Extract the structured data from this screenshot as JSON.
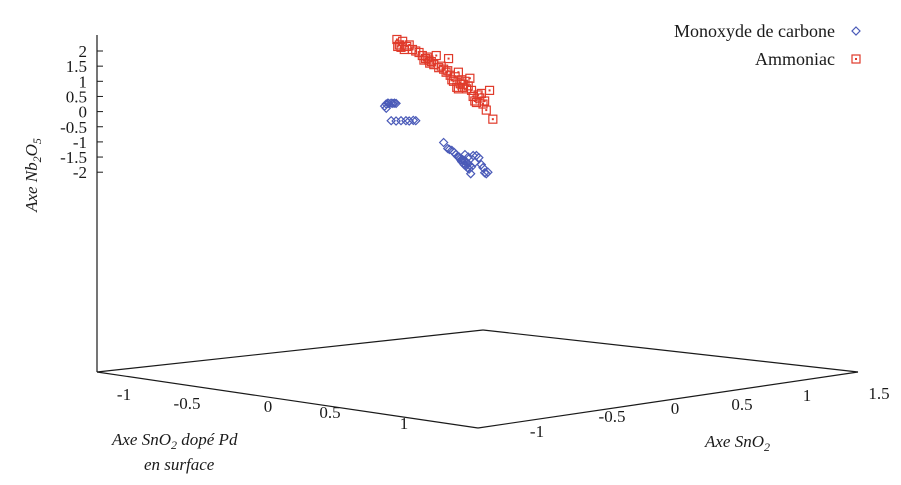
{
  "chart_data": {
    "type": "scatter",
    "projection": "3d",
    "z_axis": {
      "label_prefix": "Axe Nb",
      "label_sub1": "2",
      "label_mid": "O",
      "label_sub2": "5",
      "ticks": [
        "2",
        "1.5",
        "1",
        "0.5",
        "0",
        "-0.5",
        "-1",
        "-1.5",
        "-2"
      ],
      "range": [
        -2.3,
        2.4
      ]
    },
    "x_axis": {
      "label_prefix": "Axe SnO",
      "label_sub": "2",
      "ticks": [
        "-1",
        "-0.5",
        "0",
        "0.5",
        "1",
        "1.5"
      ]
    },
    "y_axis": {
      "label_line1_prefix": "Axe SnO",
      "label_line1_sub": "2",
      "label_line1_suffix": " dopé Pd",
      "label_line2": "en surface",
      "ticks": [
        "-1",
        "-0.5",
        "0",
        "0.5",
        "1"
      ]
    },
    "legend_position": "top-right",
    "series": [
      {
        "name": "Monoxyde de carbone",
        "marker": "diamond",
        "color": "#4a5ab8",
        "points": [
          {
            "x": -1.18,
            "y": 0.25
          },
          {
            "x": -1.16,
            "y": 0.28
          },
          {
            "x": -1.15,
            "y": 0.27
          },
          {
            "x": -1.12,
            "y": 0.28
          },
          {
            "x": -1.1,
            "y": 0.27
          },
          {
            "x": -1.08,
            "y": 0.28
          },
          {
            "x": -1.06,
            "y": 0.27
          },
          {
            "x": -1.2,
            "y": 0.18
          },
          {
            "x": -1.18,
            "y": 0.11
          },
          {
            "x": -1.12,
            "y": -0.3
          },
          {
            "x": -1.06,
            "y": -0.31
          },
          {
            "x": -1.0,
            "y": -0.3
          },
          {
            "x": -0.94,
            "y": -0.3
          },
          {
            "x": -0.9,
            "y": -0.31
          },
          {
            "x": -0.85,
            "y": -0.29
          },
          {
            "x": -0.82,
            "y": -0.3
          },
          {
            "x": -0.48,
            "y": -1.02
          },
          {
            "x": -0.43,
            "y": -1.22
          },
          {
            "x": -0.41,
            "y": -1.25
          },
          {
            "x": -0.38,
            "y": -1.28
          },
          {
            "x": -0.35,
            "y": -1.35
          },
          {
            "x": -0.33,
            "y": -1.42
          },
          {
            "x": -0.31,
            "y": -1.48
          },
          {
            "x": -0.29,
            "y": -1.5
          },
          {
            "x": -0.28,
            "y": -1.55
          },
          {
            "x": -0.27,
            "y": -1.6
          },
          {
            "x": -0.26,
            "y": -1.65
          },
          {
            "x": -0.25,
            "y": -1.58
          },
          {
            "x": -0.24,
            "y": -1.7
          },
          {
            "x": -0.23,
            "y": -1.75
          },
          {
            "x": -0.22,
            "y": -1.62
          },
          {
            "x": -0.21,
            "y": -1.8
          },
          {
            "x": -0.2,
            "y": -1.68
          },
          {
            "x": -0.19,
            "y": -1.85
          },
          {
            "x": -0.18,
            "y": -1.72
          },
          {
            "x": -0.17,
            "y": -1.9
          },
          {
            "x": -0.16,
            "y": -1.78
          },
          {
            "x": -0.15,
            "y": -2.05
          },
          {
            "x": -0.14,
            "y": -1.82
          },
          {
            "x": -0.12,
            "y": -1.45
          },
          {
            "x": -0.1,
            "y": -1.68
          },
          {
            "x": -0.08,
            "y": -1.45
          },
          {
            "x": -0.05,
            "y": -1.52
          },
          {
            "x": -0.02,
            "y": -1.75
          },
          {
            "x": 0.0,
            "y": -1.85
          },
          {
            "x": 0.02,
            "y": -2.02
          },
          {
            "x": 0.04,
            "y": -2.05
          },
          {
            "x": 0.06,
            "y": -2.0
          },
          {
            "x": -0.22,
            "y": -1.42
          },
          {
            "x": -0.18,
            "y": -1.5
          }
        ]
      },
      {
        "name": "Ammoniac",
        "marker": "square",
        "color": "#e03a2a",
        "points": [
          {
            "x": -1.05,
            "y": 2.38
          },
          {
            "x": -1.04,
            "y": 2.15
          },
          {
            "x": -1.02,
            "y": 2.2
          },
          {
            "x": -1.0,
            "y": 2.12
          },
          {
            "x": -0.98,
            "y": 2.32
          },
          {
            "x": -0.96,
            "y": 2.05
          },
          {
            "x": -0.93,
            "y": 2.15
          },
          {
            "x": -0.9,
            "y": 2.2
          },
          {
            "x": -0.86,
            "y": 2.05
          },
          {
            "x": -0.82,
            "y": 2.0
          },
          {
            "x": -0.78,
            "y": 1.95
          },
          {
            "x": -0.74,
            "y": 1.85
          },
          {
            "x": -0.7,
            "y": 1.75
          },
          {
            "x": -0.68,
            "y": 1.8
          },
          {
            "x": -0.66,
            "y": 1.7
          },
          {
            "x": -0.63,
            "y": 1.65
          },
          {
            "x": -0.6,
            "y": 1.55
          },
          {
            "x": -0.57,
            "y": 1.85
          },
          {
            "x": -0.54,
            "y": 1.45
          },
          {
            "x": -0.51,
            "y": 1.5
          },
          {
            "x": -0.48,
            "y": 1.4
          },
          {
            "x": -0.45,
            "y": 1.3
          },
          {
            "x": -0.43,
            "y": 1.35
          },
          {
            "x": -0.4,
            "y": 1.2
          },
          {
            "x": -0.38,
            "y": 1.05
          },
          {
            "x": -0.36,
            "y": 1.0
          },
          {
            "x": -0.34,
            "y": 1.15
          },
          {
            "x": -0.32,
            "y": 0.8
          },
          {
            "x": -0.3,
            "y": 0.75
          },
          {
            "x": -0.28,
            "y": 0.95
          },
          {
            "x": -0.26,
            "y": 1.05
          },
          {
            "x": -0.24,
            "y": 0.9
          },
          {
            "x": -0.22,
            "y": 1.0
          },
          {
            "x": -0.2,
            "y": 0.75
          },
          {
            "x": -0.18,
            "y": 0.85
          },
          {
            "x": -0.16,
            "y": 1.1
          },
          {
            "x": -0.14,
            "y": 0.7
          },
          {
            "x": -0.12,
            "y": 0.5
          },
          {
            "x": -0.1,
            "y": 0.35
          },
          {
            "x": -0.08,
            "y": 0.3
          },
          {
            "x": -0.06,
            "y": 0.55
          },
          {
            "x": -0.04,
            "y": 0.45
          },
          {
            "x": -0.02,
            "y": 0.6
          },
          {
            "x": 0.0,
            "y": 0.25
          },
          {
            "x": 0.02,
            "y": 0.35
          },
          {
            "x": 0.04,
            "y": 0.05
          },
          {
            "x": 0.08,
            "y": 0.7
          },
          {
            "x": 0.12,
            "y": -0.25
          },
          {
            "x": -0.42,
            "y": 1.75
          },
          {
            "x": -0.3,
            "y": 1.3
          },
          {
            "x": -0.25,
            "y": 0.8
          },
          {
            "x": -0.65,
            "y": 1.6
          },
          {
            "x": -0.72,
            "y": 1.7
          }
        ]
      }
    ]
  }
}
